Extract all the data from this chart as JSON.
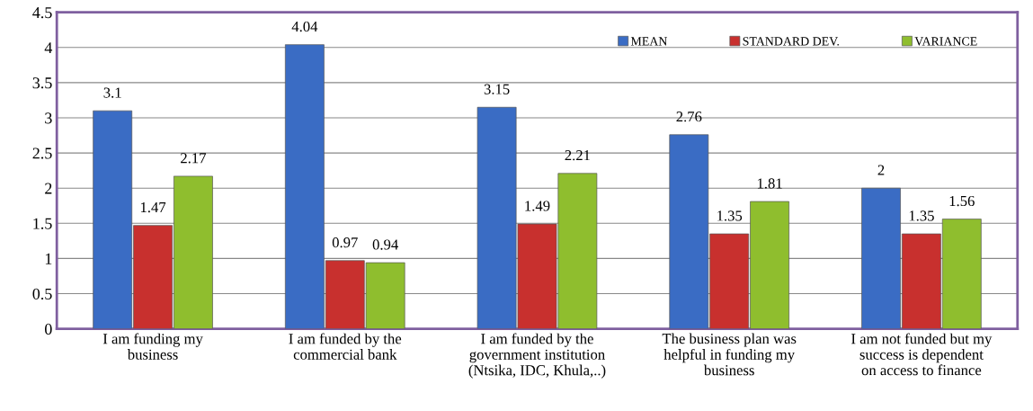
{
  "chart_data": {
    "type": "bar",
    "categories": [
      "I am funding my\nbusiness",
      "I am funded by the\ncommercial bank",
      "I am funded by the\ngovernment institution\n(Ntsika, IDC, Khula,..)",
      "The business plan was\nhelpful in funding my\nbusiness",
      "I am not funded but my\nsuccess is dependent\non access to finance"
    ],
    "series": [
      {
        "name": "MEAN",
        "color": "#3a6cc4",
        "values": [
          3.1,
          4.04,
          3.15,
          2.76,
          2
        ]
      },
      {
        "name": "STANDARD DEV.",
        "color": "#c8302e",
        "values": [
          1.47,
          0.97,
          1.49,
          1.35,
          1.35
        ]
      },
      {
        "name": "VARIANCE",
        "color": "#8fbe2e",
        "values": [
          2.17,
          0.94,
          2.21,
          1.81,
          1.56
        ]
      }
    ],
    "ylim": [
      0,
      4.5
    ],
    "yticks": [
      0,
      0.5,
      1,
      1.5,
      2,
      2.5,
      3,
      3.5,
      4,
      4.5
    ],
    "grid": "y",
    "legend": "top right",
    "data_labels": true
  }
}
